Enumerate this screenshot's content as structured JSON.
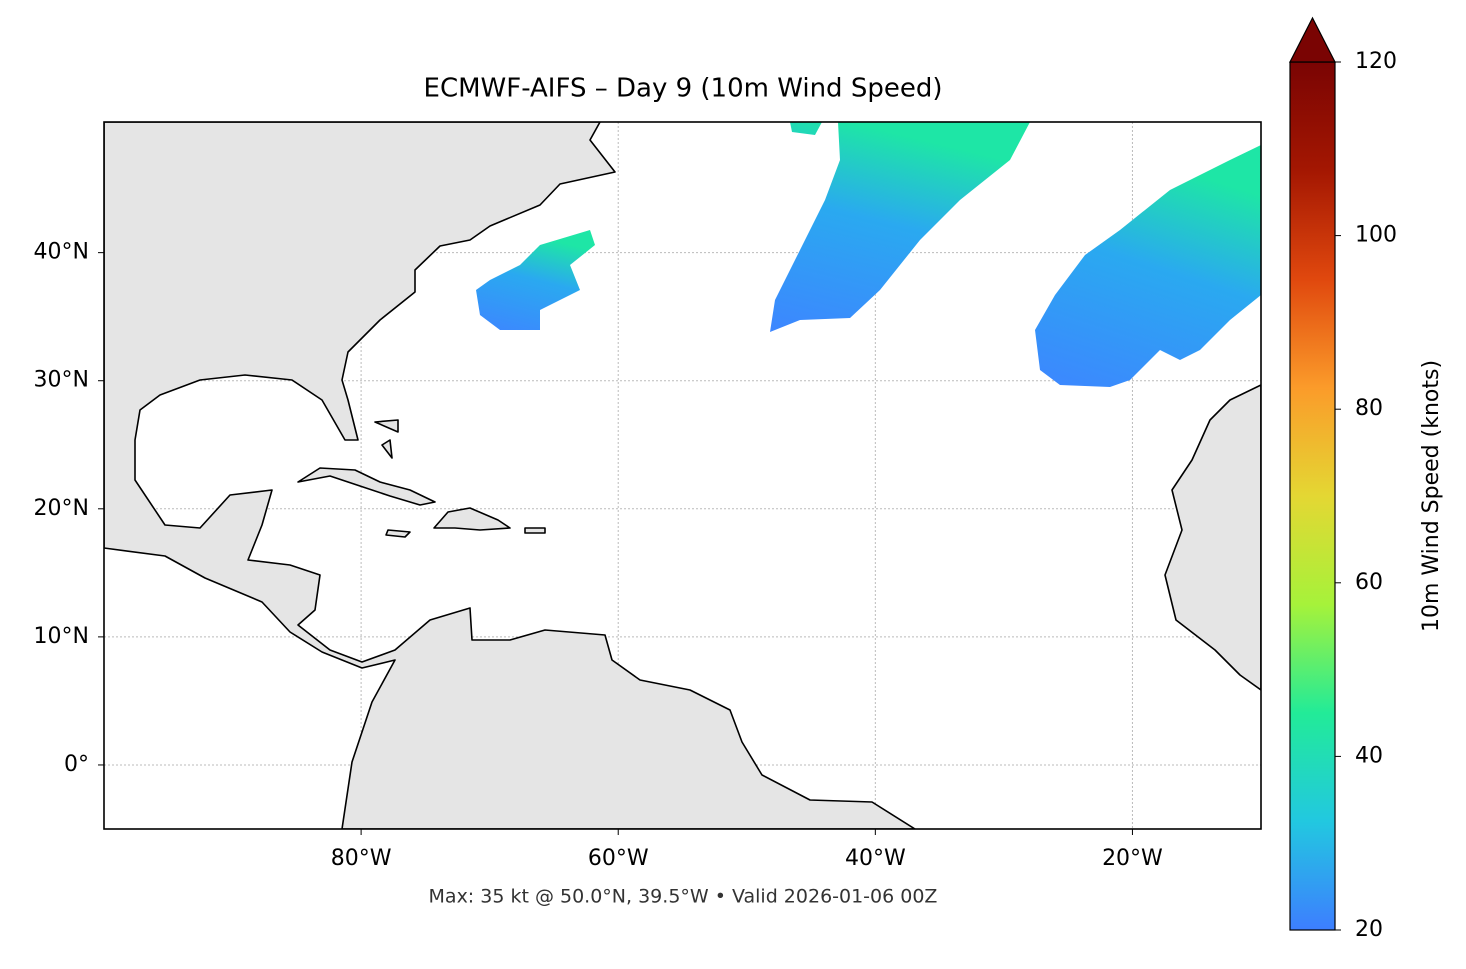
{
  "title": "ECMWF-AIFS – Day 9 (10m Wind Speed)",
  "map": {
    "xlim": [
      -100,
      -10
    ],
    "ylim": [
      -5,
      50.2
    ],
    "xticks": [
      {
        "value": -80,
        "label": "80°W"
      },
      {
        "value": -60,
        "label": "60°W"
      },
      {
        "value": -40,
        "label": "40°W"
      },
      {
        "value": -20,
        "label": "20°W"
      }
    ],
    "yticks": [
      {
        "value": 0,
        "label": "0°"
      },
      {
        "value": 10,
        "label": "10°N"
      },
      {
        "value": 20,
        "label": "20°N"
      },
      {
        "value": 30,
        "label": "30°N"
      },
      {
        "value": 40,
        "label": "40°N"
      }
    ],
    "grid": true
  },
  "colorbar": {
    "label": "10m Wind Speed (knots)",
    "lim": [
      20,
      120
    ],
    "ticks": [
      20,
      40,
      60,
      80,
      100,
      120
    ],
    "colors": [
      "#3d7eff",
      "#22c8e0",
      "#22eb98",
      "#a6f23a",
      "#e4d733",
      "#fb9b2a",
      "#e0480e",
      "#a41702",
      "#7a0403"
    ],
    "extend": "max"
  },
  "footer": "Max: 35 kt @ 50.0°N, 39.5°W • Valid 2026-01-06 00Z"
}
